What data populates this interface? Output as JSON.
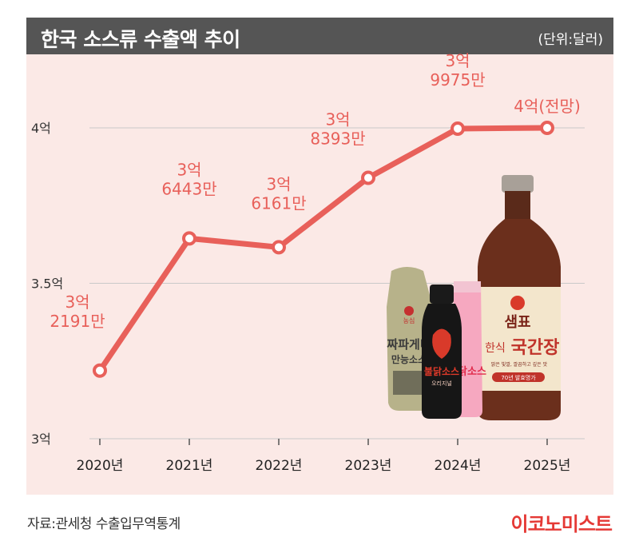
{
  "header": {
    "title": "한국 소스류 수출액 추이",
    "unit": "(단위:달러)"
  },
  "footer": {
    "source": "자료:관세청 수출입무역통계",
    "brand": "이코노미스트"
  },
  "products": {
    "bottle_labels": [
      "농심",
      "짜파게티",
      "만능소스",
      "불닭소스",
      "오리지널",
      "불닭소스",
      "샘표",
      "한식",
      "국간장",
      "맑은 빛깔, 깔끔하고 깊은 맛",
      "70년 발효명가"
    ]
  },
  "colors": {
    "line": "#e8605a",
    "label": "#e8605a",
    "panel": "#fbe9e6",
    "titlebar": "#555555",
    "brand": "#e53935"
  },
  "chart_data": {
    "type": "line",
    "title": "한국 소스류 수출액 추이",
    "unit": "(단위:달러)",
    "categories": [
      "2020년",
      "2021년",
      "2022년",
      "2023년",
      "2024년",
      "2025년"
    ],
    "values": [
      321910000,
      364430000,
      361610000,
      383930000,
      399750000,
      400000000
    ],
    "data_labels": [
      [
        "3억",
        "2191만"
      ],
      [
        "3억",
        "6443만"
      ],
      [
        "3억",
        "6161만"
      ],
      [
        "3억",
        "8393만"
      ],
      [
        "3억",
        "9975만"
      ],
      [
        "4억(전망)"
      ]
    ],
    "y_ticks": [
      {
        "value": 300000000,
        "label": "3억"
      },
      {
        "value": 350000000,
        "label": "3.5억"
      },
      {
        "value": 400000000,
        "label": "4억"
      }
    ],
    "ylim": [
      300000000,
      400000000
    ],
    "grid": true,
    "legend": "none"
  }
}
